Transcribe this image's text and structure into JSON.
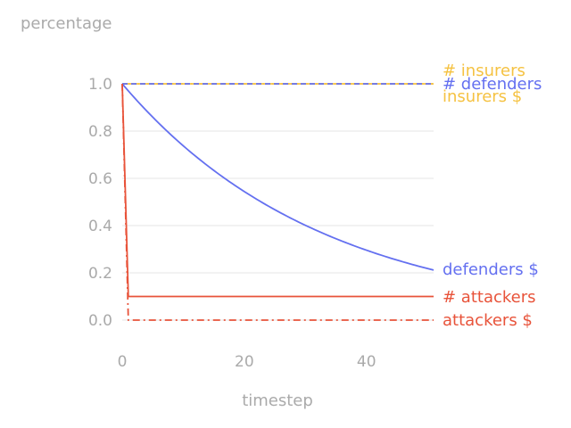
{
  "chart_data": {
    "type": "line",
    "ylabel": "percentage",
    "xlabel": "timestep",
    "xlim": [
      -1,
      51
    ],
    "ylim": [
      -0.1,
      1.05
    ],
    "x_ticks": [
      0,
      20,
      40
    ],
    "y_ticks": [
      0.0,
      0.2,
      0.4,
      0.6,
      0.8,
      1.0
    ],
    "x_tick_labels": [
      "0",
      "20",
      "40"
    ],
    "y_tick_labels": [
      "0.0",
      "0.2",
      "0.4",
      "0.6",
      "0.8",
      "1.0"
    ],
    "grid": "horizontal",
    "legend": "direct labels at right end of lines",
    "series": [
      {
        "name": "# insurers",
        "color": "#f5c242",
        "style": "solid",
        "x": [
          0,
          51
        ],
        "y": [
          1.0,
          1.0
        ]
      },
      {
        "name": "insurers $",
        "color": "#f5c242",
        "style": "dotted",
        "x": [
          0,
          51
        ],
        "y": [
          1.0,
          1.0
        ]
      },
      {
        "name": "# defenders",
        "color": "#6470f0",
        "style": "dashed",
        "x": [
          0,
          51
        ],
        "y": [
          1.0,
          1.0
        ]
      },
      {
        "name": "defenders $",
        "color": "#6470f0",
        "style": "solid",
        "x": [
          0,
          5,
          10,
          15,
          20,
          25,
          30,
          35,
          40,
          45,
          51
        ],
        "y": [
          1.0,
          0.859,
          0.737,
          0.633,
          0.544,
          0.467,
          0.401,
          0.344,
          0.296,
          0.254,
          0.212
        ]
      },
      {
        "name": "# attackers",
        "color": "#e8533a",
        "style": "solid",
        "x": [
          0,
          1,
          51
        ],
        "y": [
          1.0,
          0.1,
          0.1
        ]
      },
      {
        "name": "attackers $",
        "color": "#e8533a",
        "style": "dashdot",
        "x": [
          0,
          1,
          51
        ],
        "y": [
          1.0,
          0.0,
          0.0
        ]
      }
    ],
    "label_order": [
      "# insurers",
      "# defenders",
      "insurers $",
      "defenders $",
      "# attackers",
      "attackers $"
    ]
  },
  "colors": {
    "insurers": "#f5c242",
    "defenders": "#6470f0",
    "attackers": "#e8533a",
    "axis_text": "#aaaaaa",
    "grid": "#e6e6e6"
  }
}
